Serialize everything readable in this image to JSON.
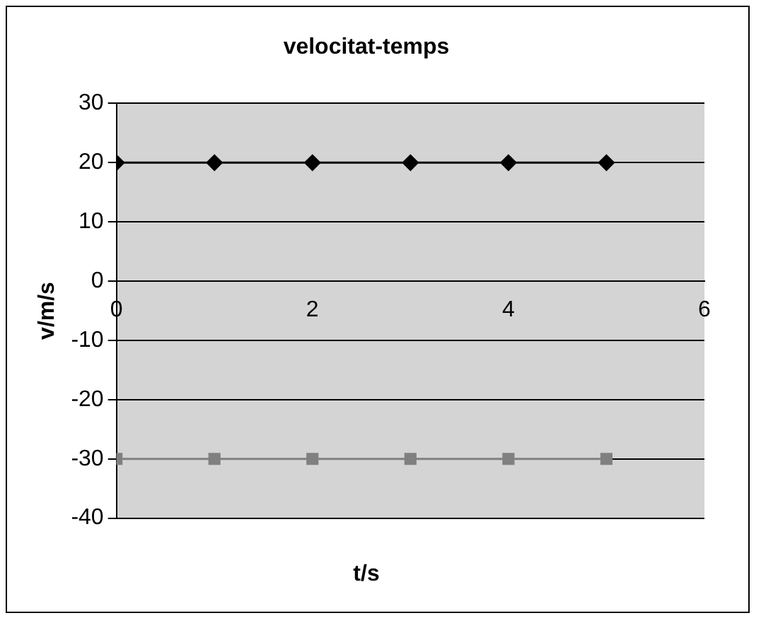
{
  "chart_data": {
    "type": "line",
    "title": "velocitat-temps",
    "xlabel": "t/s",
    "ylabel": "v/m/s",
    "x": [
      0,
      1,
      2,
      3,
      4,
      5
    ],
    "series": [
      {
        "color": "#000000",
        "marker": "diamond",
        "values": [
          20,
          20,
          20,
          20,
          20,
          20
        ]
      },
      {
        "color": "#808080",
        "marker": "square",
        "values": [
          -30,
          -30,
          -30,
          -30,
          -30,
          -30
        ]
      }
    ],
    "xlim": [
      0,
      6
    ],
    "xticks": [
      0,
      2,
      4,
      6
    ],
    "ylim": [
      -40,
      30
    ],
    "yticks": [
      -40,
      -30,
      -20,
      -10,
      0,
      10,
      20,
      30
    ],
    "grid": "y",
    "legend": false
  }
}
